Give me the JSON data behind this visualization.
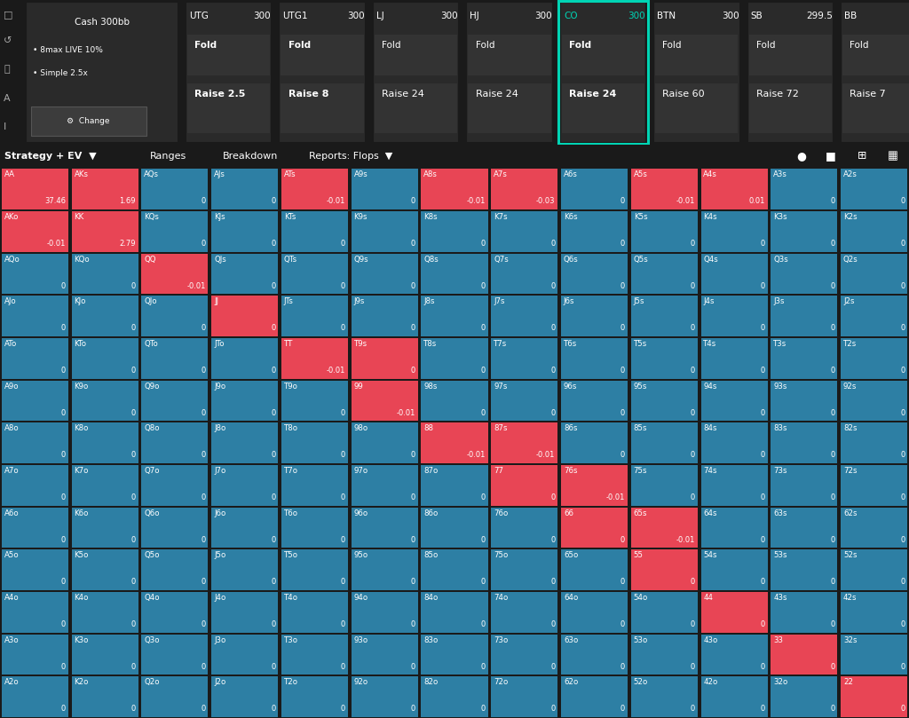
{
  "bg_color": "#1a1a1a",
  "cell_bg_teal": "#2d7fa4",
  "cell_bg_red": "#e84555",
  "highlight_border": "#00d4b4",
  "hands": [
    [
      "AA",
      "AKs",
      "AQs",
      "AJs",
      "ATs",
      "A9s",
      "A8s",
      "A7s",
      "A6s",
      "A5s",
      "A4s",
      "A3s",
      "A2s"
    ],
    [
      "AKo",
      "KK",
      "KQs",
      "KJs",
      "KTs",
      "K9s",
      "K8s",
      "K7s",
      "K6s",
      "K5s",
      "K4s",
      "K3s",
      "K2s"
    ],
    [
      "AQo",
      "KQo",
      "QQ",
      "QJs",
      "QTs",
      "Q9s",
      "Q8s",
      "Q7s",
      "Q6s",
      "Q5s",
      "Q4s",
      "Q3s",
      "Q2s"
    ],
    [
      "AJo",
      "KJo",
      "QJo",
      "JJ",
      "JTs",
      "J9s",
      "J8s",
      "J7s",
      "J6s",
      "J5s",
      "J4s",
      "J3s",
      "J2s"
    ],
    [
      "ATo",
      "KTo",
      "QTo",
      "JTo",
      "TT",
      "T9s",
      "T8s",
      "T7s",
      "T6s",
      "T5s",
      "T4s",
      "T3s",
      "T2s"
    ],
    [
      "A9o",
      "K9o",
      "Q9o",
      "J9o",
      "T9o",
      "99",
      "98s",
      "97s",
      "96s",
      "95s",
      "94s",
      "93s",
      "92s"
    ],
    [
      "A8o",
      "K8o",
      "Q8o",
      "J8o",
      "T8o",
      "98o",
      "88",
      "87s",
      "86s",
      "85s",
      "84s",
      "83s",
      "82s"
    ],
    [
      "A7o",
      "K7o",
      "Q7o",
      "J7o",
      "T7o",
      "97o",
      "87o",
      "77",
      "76s",
      "75s",
      "74s",
      "73s",
      "72s"
    ],
    [
      "A6o",
      "K6o",
      "Q6o",
      "J6o",
      "T6o",
      "96o",
      "86o",
      "76o",
      "66",
      "65s",
      "64s",
      "63s",
      "62s"
    ],
    [
      "A5o",
      "K5o",
      "Q5o",
      "J5o",
      "T5o",
      "95o",
      "85o",
      "75o",
      "65o",
      "55",
      "54s",
      "53s",
      "52s"
    ],
    [
      "A4o",
      "K4o",
      "Q4o",
      "J4o",
      "T4o",
      "94o",
      "84o",
      "74o",
      "64o",
      "54o",
      "44",
      "43s",
      "42s"
    ],
    [
      "A3o",
      "K3o",
      "Q3o",
      "J3o",
      "T3o",
      "93o",
      "83o",
      "73o",
      "63o",
      "53o",
      "43o",
      "33",
      "32s"
    ],
    [
      "A2o",
      "K2o",
      "Q2o",
      "J2o",
      "T2o",
      "92o",
      "82o",
      "72o",
      "62o",
      "52o",
      "42o",
      "32o",
      "22"
    ]
  ],
  "ev_values": [
    [
      37.46,
      1.69,
      0,
      0,
      -0.01,
      0,
      -0.01,
      -0.03,
      0,
      -0.01,
      0.01,
      0,
      0
    ],
    [
      -0.01,
      2.79,
      0,
      0,
      0,
      0,
      0,
      0,
      0,
      0,
      0,
      0,
      0
    ],
    [
      0,
      0,
      -0.01,
      0,
      0,
      0,
      0,
      0,
      0,
      0,
      0,
      0,
      0
    ],
    [
      0,
      0,
      0,
      0,
      0,
      0,
      0,
      0,
      0,
      0,
      0,
      0,
      0
    ],
    [
      0,
      0,
      0,
      0,
      -0.01,
      0,
      0,
      0,
      0,
      0,
      0,
      0,
      0
    ],
    [
      0,
      0,
      0,
      0,
      0,
      -0.01,
      0,
      0,
      0,
      0,
      0,
      0,
      0
    ],
    [
      0,
      0,
      0,
      0,
      0,
      0,
      -0.01,
      -0.01,
      0,
      0,
      0,
      0,
      0
    ],
    [
      0,
      0,
      0,
      0,
      0,
      0,
      0,
      0,
      -0.01,
      0,
      0,
      0,
      0
    ],
    [
      0,
      0,
      0,
      0,
      0,
      0,
      0,
      0,
      0,
      -0.01,
      0,
      0,
      0
    ],
    [
      0,
      0,
      0,
      0,
      0,
      0,
      0,
      0,
      0,
      0,
      0,
      0,
      0
    ],
    [
      0,
      0,
      0,
      0,
      0,
      0,
      0,
      0,
      0,
      0,
      0,
      0,
      0
    ],
    [
      0,
      0,
      0,
      0,
      0,
      0,
      0,
      0,
      0,
      0,
      0,
      0,
      0
    ],
    [
      0,
      0,
      0,
      0,
      0,
      0,
      0,
      0,
      0,
      0,
      0,
      0,
      0
    ]
  ],
  "red_cells": [
    [
      1,
      1,
      0,
      0,
      1,
      0,
      1,
      1,
      0,
      1,
      1,
      0,
      0
    ],
    [
      1,
      1,
      0,
      0,
      0,
      0,
      0,
      0,
      0,
      0,
      0,
      0,
      0
    ],
    [
      0,
      0,
      1,
      0,
      0,
      0,
      0,
      0,
      0,
      0,
      0,
      0,
      0
    ],
    [
      0,
      0,
      0,
      1,
      0,
      0,
      0,
      0,
      0,
      0,
      0,
      0,
      0
    ],
    [
      0,
      0,
      0,
      0,
      1,
      1,
      0,
      0,
      0,
      0,
      0,
      0,
      0
    ],
    [
      0,
      0,
      0,
      0,
      0,
      1,
      0,
      0,
      0,
      0,
      0,
      0,
      0
    ],
    [
      0,
      0,
      0,
      0,
      0,
      0,
      1,
      1,
      0,
      0,
      0,
      0,
      0
    ],
    [
      0,
      0,
      0,
      0,
      0,
      0,
      0,
      1,
      1,
      0,
      0,
      0,
      0
    ],
    [
      0,
      0,
      0,
      0,
      0,
      0,
      0,
      0,
      1,
      1,
      0,
      0,
      0
    ],
    [
      0,
      0,
      0,
      0,
      0,
      0,
      0,
      0,
      0,
      1,
      0,
      0,
      0
    ],
    [
      0,
      0,
      0,
      0,
      0,
      0,
      0,
      0,
      0,
      0,
      1,
      0,
      0
    ],
    [
      0,
      0,
      0,
      0,
      0,
      0,
      0,
      0,
      0,
      0,
      0,
      1,
      0
    ],
    [
      0,
      0,
      0,
      0,
      0,
      0,
      0,
      0,
      0,
      0,
      0,
      0,
      1
    ]
  ],
  "partial_left_strip": {
    "1_0": 0.13,
    "2_2": 0.08,
    "3_3": 0.07,
    "4_4": 0.07,
    "5_5": 0.07,
    "6_6": 0.07,
    "7_7": 0.07,
    "7_8": 0.07,
    "8_8": 0.07,
    "8_9": 0.07
  },
  "header_cells": [
    {
      "name": "Cash 300bb",
      "stack": "",
      "fold": "",
      "raise": "",
      "special": true
    },
    {
      "name": "UTG",
      "stack": "300",
      "fold": "Fold",
      "raise": "Raise 2.5",
      "bold_raise": true
    },
    {
      "name": "UTG1",
      "stack": "300",
      "fold": "Fold",
      "raise": "Raise 8",
      "bold_raise": true
    },
    {
      "name": "LJ",
      "stack": "300",
      "fold": "Fold",
      "raise": "Raise 24",
      "bold_raise": false
    },
    {
      "name": "HJ",
      "stack": "300",
      "fold": "Fold",
      "raise": "Raise 24",
      "bold_raise": false
    },
    {
      "name": "CO",
      "stack": "300",
      "fold": "Fold",
      "raise": "Raise 24",
      "bold_raise": true,
      "highlight": true
    },
    {
      "name": "BTN",
      "stack": "300",
      "fold": "Fold",
      "raise": "Raise 60",
      "bold_raise": false
    },
    {
      "name": "SB",
      "stack": "299.5",
      "fold": "Fold",
      "raise": "Raise 72",
      "bold_raise": false
    },
    {
      "name": "BB",
      "stack": "",
      "fold": "Fold",
      "raise": "Raise 7",
      "bold_raise": false
    }
  ],
  "toolbar_left": [
    "Strategy + EV",
    "Ranges",
    "Breakdown",
    "Reports: Flops"
  ],
  "fold_bold": [
    false,
    true,
    true,
    false,
    false,
    true,
    false,
    false,
    false
  ],
  "raise_bold": [
    false,
    true,
    true,
    false,
    false,
    true,
    false,
    false,
    false
  ]
}
